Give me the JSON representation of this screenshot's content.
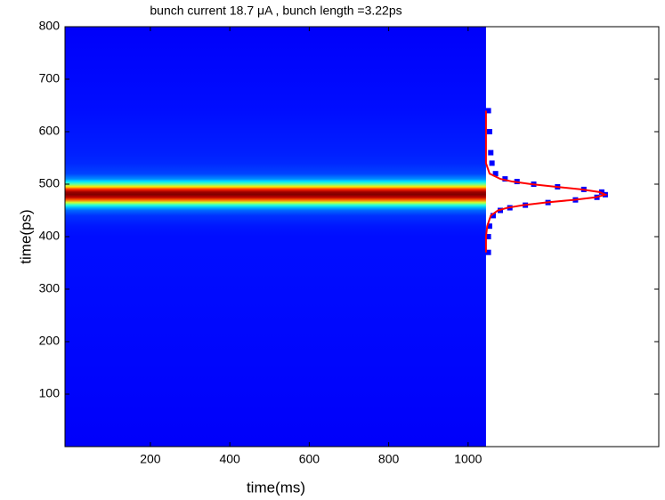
{
  "chart_data": {
    "type": "streak",
    "title": "bunch current 18.7 μA , bunch length =3.22ps",
    "xlabel": "time(ms)",
    "ylabel": "time(ps)",
    "xlim": [
      -15,
      1480
    ],
    "ylim": [
      0,
      800
    ],
    "xticks": [
      200,
      400,
      600,
      800,
      1000
    ],
    "yticks": [
      100,
      200,
      300,
      400,
      500,
      600,
      700,
      800
    ],
    "image_xlim": [
      -15,
      1045
    ],
    "x": [
      370,
      400,
      420,
      440,
      450,
      455,
      460,
      465,
      470,
      475,
      480,
      485,
      490,
      495,
      500,
      505,
      510,
      520,
      540,
      560,
      600,
      640
    ],
    "series": [
      {
        "color": "#0000ff",
        "style": "markers",
        "values": [
          0.02,
          0.02,
          0.03,
          0.06,
          0.12,
          0.2,
          0.33,
          0.52,
          0.75,
          0.93,
          1.0,
          0.97,
          0.82,
          0.6,
          0.4,
          0.26,
          0.16,
          0.08,
          0.05,
          0.04,
          0.03,
          0.02
        ]
      },
      {
        "color": "#ff0000",
        "style": "line",
        "values": [
          0.0,
          0.0,
          0.01,
          0.04,
          0.1,
          0.18,
          0.31,
          0.5,
          0.73,
          0.92,
          1.0,
          0.95,
          0.8,
          0.59,
          0.38,
          0.22,
          0.12,
          0.03,
          0.0,
          0.0,
          0.0,
          0.0
        ]
      }
    ]
  }
}
